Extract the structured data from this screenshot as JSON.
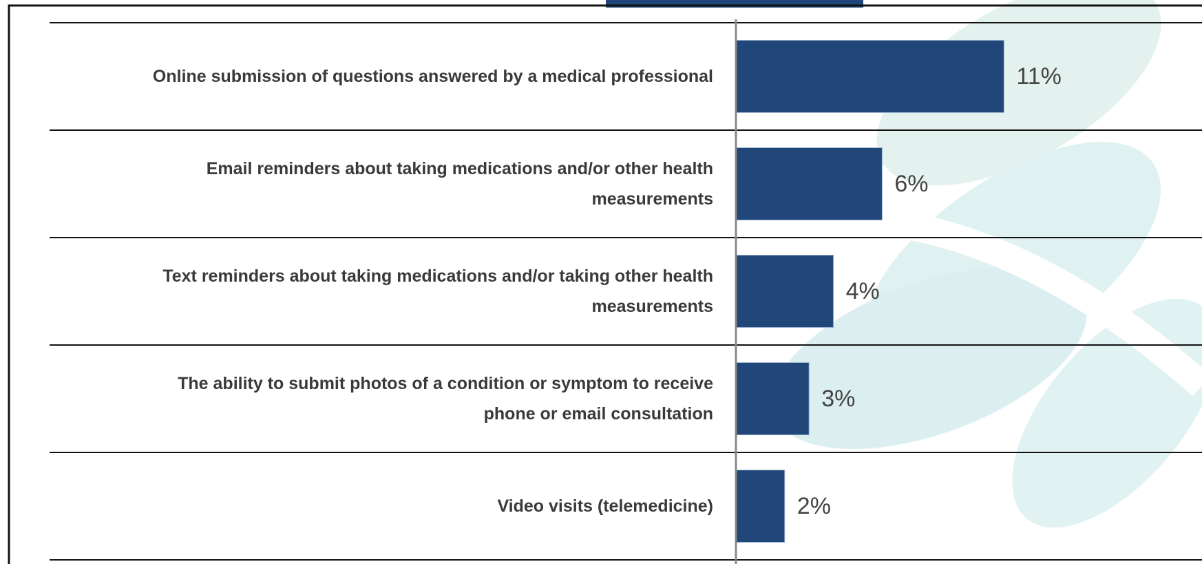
{
  "chart_data": {
    "type": "bar",
    "orientation": "horizontal",
    "categories": [
      "Online submission of questions answered by a medical professional",
      "Email reminders about taking medications and/or other health measurements",
      "Text reminders about taking medications and/or taking other health measurements",
      "The ability to submit photos of a condition or symptom to receive phone or email consultation",
      "Video visits (telemedicine)"
    ],
    "values": [
      11,
      6,
      4,
      3,
      2
    ],
    "value_labels": [
      "11%",
      "6%",
      "4%",
      "3%",
      "2%"
    ],
    "color": "#21477a"
  }
}
